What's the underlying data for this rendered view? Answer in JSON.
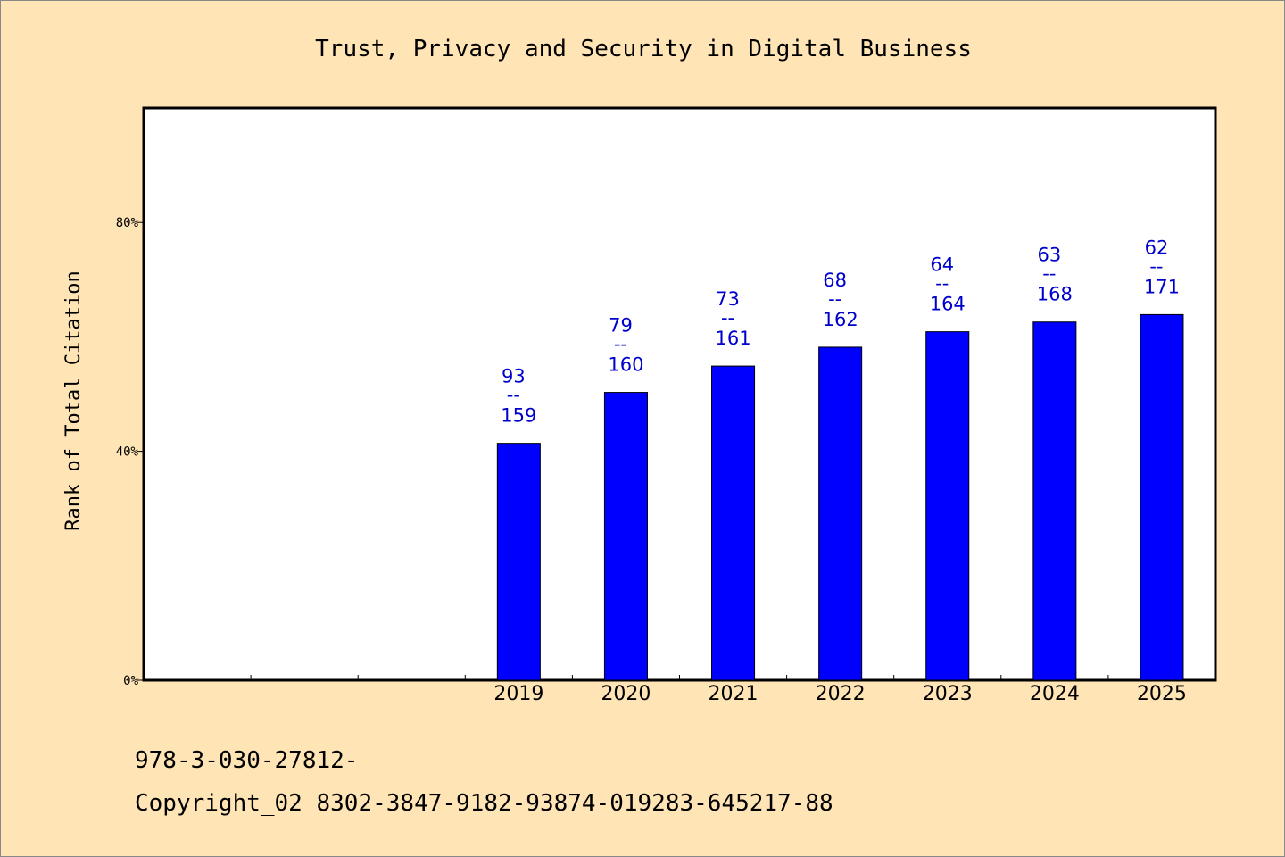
{
  "chart_data": {
    "type": "bar",
    "title": "Trust, Privacy and Security in Digital Business",
    "xlabel": "",
    "ylabel": "Rank of Total Citation",
    "categories": [
      "2019",
      "2020",
      "2021",
      "2022",
      "2023",
      "2024",
      "2025"
    ],
    "values": [
      41.4,
      50.3,
      54.9,
      58.2,
      60.9,
      62.6,
      63.9
    ],
    "rank": [
      "93",
      "79",
      "73",
      "68",
      "64",
      "63",
      "62"
    ],
    "total": [
      "159",
      "160",
      "161",
      "162",
      "164",
      "168",
      "171"
    ],
    "separator": "--",
    "yticks": [
      {
        "value": 0,
        "label": "0%"
      },
      {
        "value": 40,
        "label": "40%"
      },
      {
        "value": 80,
        "label": "80%"
      }
    ],
    "ylim": [
      0,
      100
    ],
    "x_slots": 10,
    "empty_leading_slots": 3,
    "grid": false,
    "colors": {
      "bar": "#0000ff",
      "label": "#0000cc",
      "background": "#ffe4b5",
      "plot_background": "#ffffff"
    }
  },
  "footer": {
    "isbn": "978-3-030-27812-",
    "copyright": "Copyright_02 8302-3847-9182-93874-019283-645217-88"
  }
}
